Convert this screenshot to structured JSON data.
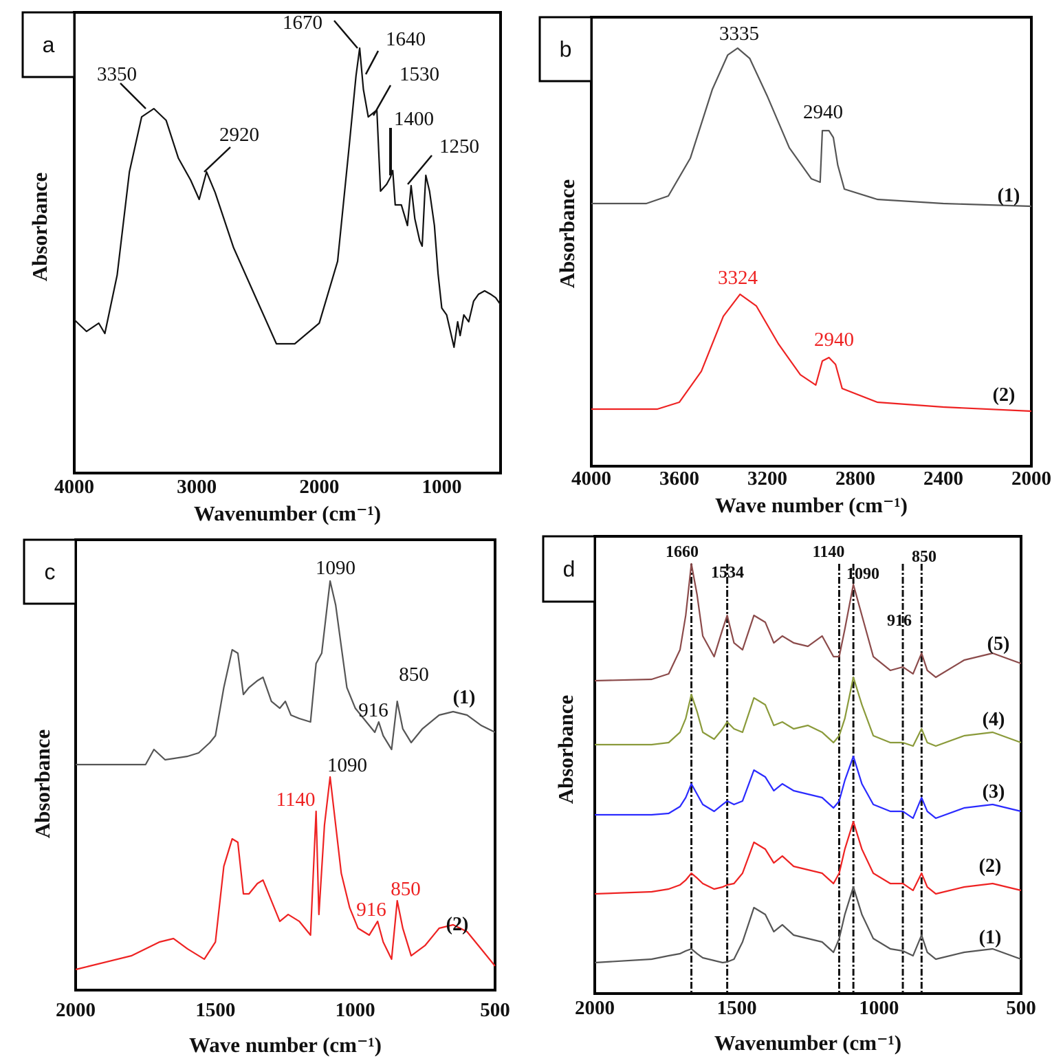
{
  "chart_data": [
    {
      "panel": "a",
      "type": "line",
      "xlabel": "Wavenumber (cm⁻¹)",
      "ylabel": "Absorbance",
      "xlim": [
        4000,
        520
      ],
      "ylim": [
        0,
        6.7
      ],
      "x_reversed": true,
      "xticks": [
        "4000",
        "3000",
        "2000",
        "1000"
      ],
      "xtick_values": [
        4000,
        3000,
        2000,
        1000
      ],
      "grid": false,
      "series": [
        {
          "color": "#111111",
          "x": [
            4000,
            3900,
            3800,
            3750,
            3650,
            3550,
            3450,
            3350,
            3250,
            3150,
            3050,
            2980,
            2920,
            2850,
            2700,
            2500,
            2350,
            2200,
            2000,
            1850,
            1760,
            1700,
            1670,
            1640,
            1600,
            1530,
            1500,
            1450,
            1420,
            1400,
            1380,
            1330,
            1280,
            1250,
            1220,
            1180,
            1160,
            1140,
            1130,
            1100,
            1060,
            1030,
            1000,
            960,
            900,
            870,
            850,
            820,
            780,
            740,
            700,
            650,
            600,
            560,
            520
          ],
          "y": [
            2.23,
            2.06,
            2.18,
            2.03,
            2.88,
            4.38,
            5.18,
            5.3,
            5.13,
            4.58,
            4.26,
            3.98,
            4.38,
            4.08,
            3.28,
            2.48,
            1.88,
            1.88,
            2.18,
            3.08,
            4.68,
            5.78,
            6.18,
            5.58,
            5.18,
            5.28,
            4.1,
            4.2,
            4.3,
            4.4,
            3.9,
            3.9,
            3.6,
            4.18,
            3.7,
            3.38,
            3.3,
            4.0,
            4.33,
            4.1,
            3.6,
            2.9,
            2.4,
            2.3,
            1.83,
            2.2,
            2.0,
            2.3,
            2.2,
            2.5,
            2.6,
            2.65,
            2.6,
            2.55,
            2.45
          ]
        }
      ],
      "annotations": [
        "3350",
        "2920",
        "1670",
        "1640",
        "1530",
        "1400",
        "1250"
      ]
    },
    {
      "panel": "b",
      "type": "line",
      "xlabel": "Wave number (cm⁻¹)",
      "ylabel": "Absorbance",
      "xlim": [
        4000,
        2000
      ],
      "ylim": [
        0,
        6.53
      ],
      "x_reversed": true,
      "xticks": [
        "4000",
        "3600",
        "3200",
        "2800",
        "2400",
        "2000"
      ],
      "xtick_values": [
        4000,
        3600,
        3200,
        2800,
        2400,
        2000
      ],
      "grid": false,
      "series": [
        {
          "name": "(1)",
          "color": "#555555",
          "x": [
            4000,
            3750,
            3650,
            3550,
            3450,
            3380,
            3335,
            3280,
            3200,
            3100,
            3000,
            2960,
            2950,
            2920,
            2900,
            2880,
            2850,
            2700,
            2400,
            2000
          ],
          "y": [
            3.82,
            3.82,
            3.93,
            4.48,
            5.48,
            5.98,
            6.08,
            5.93,
            5.38,
            4.63,
            4.18,
            4.13,
            4.88,
            4.88,
            4.78,
            4.38,
            4.03,
            3.88,
            3.82,
            3.78
          ]
        },
        {
          "name": "(2)",
          "color": "#ee2222",
          "x": [
            4000,
            3700,
            3600,
            3500,
            3400,
            3324,
            3250,
            3150,
            3050,
            2980,
            2950,
            2920,
            2890,
            2860,
            2700,
            2400,
            2000
          ],
          "y": [
            0.83,
            0.83,
            0.93,
            1.38,
            2.18,
            2.5,
            2.33,
            1.78,
            1.33,
            1.18,
            1.53,
            1.58,
            1.48,
            1.13,
            0.93,
            0.86,
            0.8
          ]
        }
      ],
      "annotations": [
        {
          "text": "3335",
          "color": "#111111"
        },
        {
          "text": "2940",
          "color": "#111111"
        },
        {
          "text": "3324",
          "color": "#ee2222"
        },
        {
          "text": "2940",
          "color": "#ee2222"
        }
      ]
    },
    {
      "panel": "c",
      "type": "line",
      "xlabel": "Wave number (cm⁻¹)",
      "ylabel": "Absorbance",
      "xlim": [
        2000,
        500
      ],
      "ylim": [
        0,
        6.55
      ],
      "x_reversed": true,
      "xticks": [
        "2000",
        "1500",
        "1000",
        "500"
      ],
      "xtick_values": [
        2000,
        1500,
        1000,
        500
      ],
      "grid": false,
      "series": [
        {
          "name": "(1)",
          "color": "#555555",
          "x": [
            2000,
            1750,
            1720,
            1680,
            1600,
            1560,
            1520,
            1500,
            1470,
            1440,
            1420,
            1400,
            1380,
            1350,
            1330,
            1300,
            1270,
            1250,
            1230,
            1200,
            1160,
            1140,
            1120,
            1100,
            1090,
            1070,
            1050,
            1030,
            1000,
            960,
            930,
            916,
            900,
            870,
            850,
            830,
            800,
            760,
            700,
            650,
            600,
            550,
            500
          ],
          "y": [
            3.28,
            3.28,
            3.5,
            3.35,
            3.4,
            3.45,
            3.6,
            3.7,
            4.4,
            4.95,
            4.9,
            4.3,
            4.4,
            4.5,
            4.55,
            4.2,
            4.1,
            4.2,
            4.0,
            3.95,
            3.9,
            4.75,
            4.9,
            5.6,
            5.95,
            5.6,
            5.0,
            4.4,
            4.1,
            3.9,
            3.75,
            3.9,
            3.7,
            3.5,
            4.2,
            3.8,
            3.6,
            3.8,
            4.0,
            4.05,
            4.0,
            3.85,
            3.75
          ]
        },
        {
          "name": "(2)",
          "color": "#ee2222",
          "x": [
            2000,
            1800,
            1700,
            1650,
            1600,
            1540,
            1500,
            1470,
            1440,
            1420,
            1400,
            1380,
            1350,
            1330,
            1300,
            1270,
            1240,
            1200,
            1160,
            1140,
            1130,
            1110,
            1090,
            1070,
            1050,
            1020,
            990,
            950,
            920,
            900,
            870,
            850,
            830,
            800,
            750,
            700,
            650,
            600,
            550,
            500
          ],
          "y": [
            0.3,
            0.5,
            0.7,
            0.75,
            0.6,
            0.45,
            0.7,
            1.8,
            2.2,
            2.15,
            1.4,
            1.4,
            1.55,
            1.6,
            1.3,
            1.0,
            1.1,
            1.0,
            0.8,
            2.6,
            1.1,
            2.4,
            3.1,
            2.4,
            1.7,
            1.2,
            0.9,
            0.8,
            1.0,
            0.7,
            0.45,
            1.3,
            0.9,
            0.5,
            0.65,
            0.9,
            0.95,
            0.85,
            0.6,
            0.35
          ]
        }
      ],
      "annotations": [
        {
          "text": "1090",
          "color": "#111111"
        },
        {
          "text": "850",
          "color": "#111111"
        },
        {
          "text": "916",
          "color": "#111111"
        },
        {
          "text": "1090",
          "color": "#111111"
        },
        {
          "text": "1140",
          "color": "#ee2222"
        },
        {
          "text": "916",
          "color": "#ee2222"
        },
        {
          "text": "850",
          "color": "#ee2222"
        }
      ]
    },
    {
      "panel": "d",
      "type": "line",
      "xlabel": "Wavenumber (cm⁻¹)",
      "ylabel": "Absorbance",
      "xlim": [
        2000,
        500
      ],
      "ylim": [
        0,
        6.65
      ],
      "x_reversed": true,
      "xticks": [
        "2000",
        "1500",
        "1000",
        "500"
      ],
      "xtick_values": [
        2000,
        1500,
        1000,
        500
      ],
      "grid": false,
      "reference_lines": [
        1660,
        1534,
        1140,
        1090,
        916,
        850
      ],
      "x": [
        2000,
        1800,
        1740,
        1700,
        1680,
        1660,
        1640,
        1620,
        1580,
        1550,
        1534,
        1510,
        1480,
        1440,
        1400,
        1370,
        1340,
        1300,
        1250,
        1200,
        1160,
        1140,
        1120,
        1090,
        1060,
        1020,
        960,
        916,
        880,
        850,
        830,
        800,
        700,
        600,
        500
      ],
      "series": [
        {
          "name": "(5)",
          "color": "#8b4a4a",
          "y": [
            4.55,
            4.57,
            4.65,
            5.0,
            5.5,
            6.25,
            5.8,
            5.2,
            4.9,
            5.3,
            5.5,
            5.1,
            5.0,
            5.5,
            5.4,
            5.1,
            5.2,
            5.1,
            5.05,
            5.2,
            4.9,
            4.9,
            5.3,
            5.95,
            5.5,
            4.9,
            4.7,
            4.75,
            4.65,
            4.95,
            4.7,
            4.6,
            4.85,
            4.95,
            4.8
          ]
        },
        {
          "name": "(4)",
          "color": "#8a9a3a",
          "y": [
            3.62,
            3.62,
            3.65,
            3.8,
            4.0,
            4.35,
            4.1,
            3.8,
            3.7,
            3.85,
            3.95,
            3.85,
            3.8,
            4.3,
            4.2,
            3.9,
            3.95,
            3.85,
            3.9,
            3.8,
            3.65,
            3.75,
            4.0,
            4.6,
            4.2,
            3.75,
            3.65,
            3.65,
            3.6,
            3.85,
            3.65,
            3.6,
            3.75,
            3.8,
            3.65
          ]
        },
        {
          "name": "(3)",
          "color": "#2a2aff",
          "y": [
            2.6,
            2.6,
            2.62,
            2.72,
            2.85,
            3.05,
            2.9,
            2.75,
            2.65,
            2.75,
            2.8,
            2.75,
            2.8,
            3.25,
            3.15,
            2.95,
            3.05,
            2.95,
            2.9,
            2.85,
            2.7,
            2.8,
            3.1,
            3.45,
            3.05,
            2.75,
            2.65,
            2.65,
            2.55,
            2.85,
            2.65,
            2.55,
            2.7,
            2.75,
            2.65
          ]
        },
        {
          "name": "(2)",
          "color": "#ee2222",
          "y": [
            1.45,
            1.48,
            1.52,
            1.58,
            1.65,
            1.75,
            1.68,
            1.6,
            1.52,
            1.55,
            1.58,
            1.6,
            1.75,
            2.2,
            2.1,
            1.9,
            2.0,
            1.85,
            1.8,
            1.75,
            1.6,
            1.75,
            2.1,
            2.5,
            2.1,
            1.75,
            1.6,
            1.6,
            1.5,
            1.75,
            1.55,
            1.45,
            1.55,
            1.6,
            1.5
          ]
        },
        {
          "name": "(1)",
          "color": "#555555",
          "y": [
            0.45,
            0.5,
            0.55,
            0.58,
            0.62,
            0.65,
            0.58,
            0.52,
            0.48,
            0.45,
            0.46,
            0.5,
            0.75,
            1.25,
            1.15,
            0.9,
            1.0,
            0.85,
            0.8,
            0.75,
            0.6,
            0.8,
            1.15,
            1.55,
            1.15,
            0.8,
            0.65,
            0.62,
            0.55,
            0.85,
            0.6,
            0.5,
            0.6,
            0.65,
            0.5
          ]
        }
      ],
      "annotations": [
        "1660",
        "1534",
        "1140",
        "1090",
        "916",
        "850"
      ]
    }
  ]
}
